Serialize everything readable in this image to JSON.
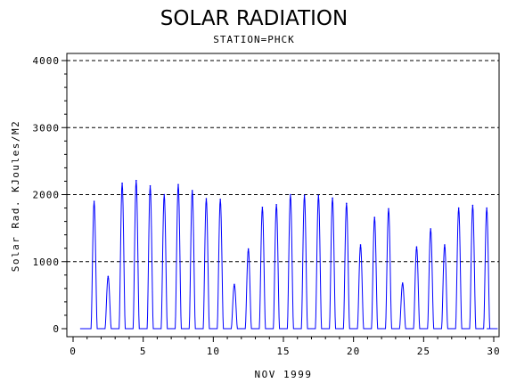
{
  "chart_data": {
    "type": "line",
    "title": "SOLAR RADIATION",
    "subtitle": "STATION=PHCK",
    "xlabel": "NOV 1999",
    "ylabel": "Solar Rad. KJoules/M2",
    "xlim": [
      0,
      30
    ],
    "ylim": [
      0,
      4000
    ],
    "x_ticks": [
      0,
      5,
      10,
      15,
      20,
      25,
      30
    ],
    "y_ticks": [
      0,
      1000,
      2000,
      3000,
      4000
    ],
    "grid": "horizontal-dashed",
    "series": [
      {
        "color": "#0000ff",
        "daily_peaks": [
          {
            "day": 1,
            "peak": 1900
          },
          {
            "day": 2,
            "peak": 780
          },
          {
            "day": 3,
            "peak": 2170
          },
          {
            "day": 4,
            "peak": 2210
          },
          {
            "day": 5,
            "peak": 2130
          },
          {
            "day": 6,
            "peak": 2000
          },
          {
            "day": 7,
            "peak": 2150
          },
          {
            "day": 8,
            "peak": 2060
          },
          {
            "day": 9,
            "peak": 1940
          },
          {
            "day": 10,
            "peak": 1930
          },
          {
            "day": 11,
            "peak": 660
          },
          {
            "day": 12,
            "peak": 1190
          },
          {
            "day": 13,
            "peak": 1810
          },
          {
            "day": 14,
            "peak": 1850
          },
          {
            "day": 15,
            "peak": 2000
          },
          {
            "day": 16,
            "peak": 1990
          },
          {
            "day": 17,
            "peak": 1990
          },
          {
            "day": 18,
            "peak": 1950
          },
          {
            "day": 19,
            "peak": 1870
          },
          {
            "day": 20,
            "peak": 1250
          },
          {
            "day": 21,
            "peak": 1660
          },
          {
            "day": 22,
            "peak": 1790
          },
          {
            "day": 23,
            "peak": 680
          },
          {
            "day": 24,
            "peak": 1220
          },
          {
            "day": 25,
            "peak": 1490
          },
          {
            "day": 26,
            "peak": 1250
          },
          {
            "day": 27,
            "peak": 1800
          },
          {
            "day": 28,
            "peak": 1840
          },
          {
            "day": 29,
            "peak": 1800
          }
        ]
      }
    ]
  }
}
